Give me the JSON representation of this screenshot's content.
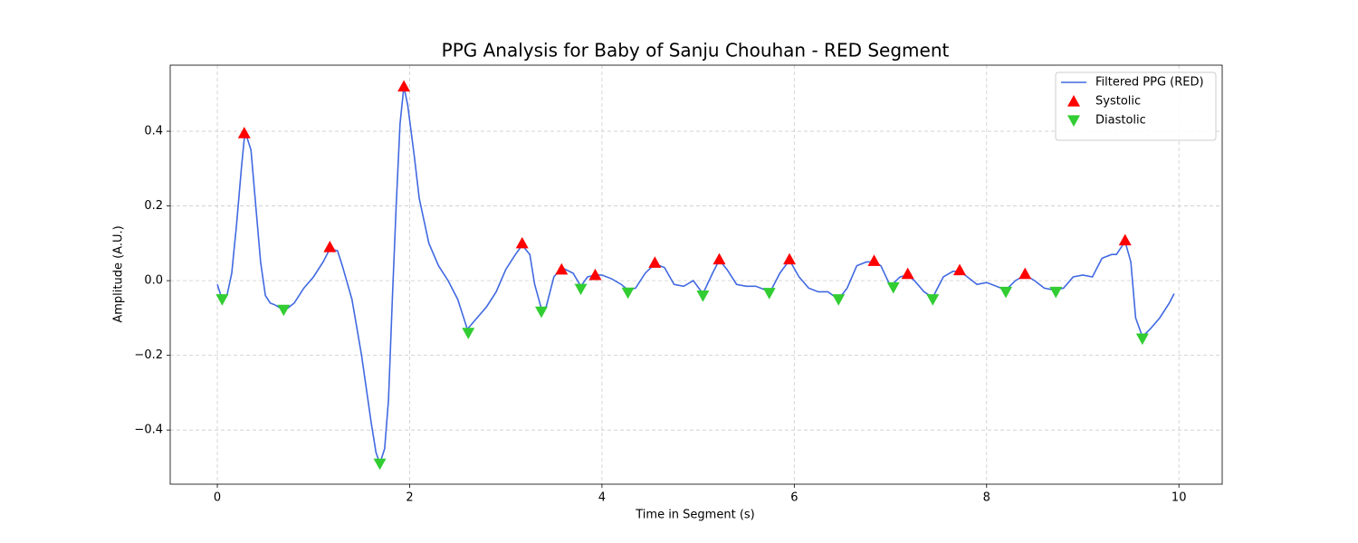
{
  "chart_data": {
    "type": "line",
    "title": "PPG Analysis for Baby of Sanju Chouhan - RED Segment",
    "x_label": "Time in Segment (s)",
    "y_label": "Amplitude (A.U.)",
    "xlim": [
      -0.49,
      10.45
    ],
    "ylim": [
      -0.545,
      0.577
    ],
    "xticks": [
      0,
      2,
      4,
      6,
      8,
      10
    ],
    "yticks": [
      {
        "value": -0.4,
        "label": "−0.4"
      },
      {
        "value": -0.2,
        "label": "−0.2"
      },
      {
        "value": 0,
        "label": "0.0"
      },
      0.2,
      0.4
    ],
    "grid": true,
    "legend": "upper right",
    "series": [
      {
        "name": "Filtered PPG (RED)",
        "color": "#4169e1",
        "marker": "line",
        "x": [
          0,
          0.05,
          0.1,
          0.15,
          0.2,
          0.25,
          0.28,
          0.3,
          0.35,
          0.4,
          0.45,
          0.5,
          0.55,
          0.6,
          0.7,
          0.8,
          0.9,
          1.0,
          1.1,
          1.17,
          1.25,
          1.3,
          1.4,
          1.5,
          1.6,
          1.65,
          1.69,
          1.74,
          1.78,
          1.82,
          1.86,
          1.9,
          1.94,
          1.98,
          2.05,
          2.1,
          2.2,
          2.3,
          2.4,
          2.5,
          2.6,
          2.7,
          2.8,
          2.9,
          3.0,
          3.1,
          3.17,
          3.25,
          3.3,
          3.37,
          3.42,
          3.5,
          3.58,
          3.7,
          3.78,
          3.85,
          3.93,
          4.0,
          4.1,
          4.2,
          4.27,
          4.35,
          4.45,
          4.55,
          4.65,
          4.75,
          4.85,
          4.95,
          5.05,
          5.15,
          5.22,
          5.3,
          5.4,
          5.5,
          5.6,
          5.75,
          5.85,
          5.95,
          6.05,
          6.15,
          6.25,
          6.35,
          6.46,
          6.55,
          6.65,
          6.75,
          6.83,
          6.9,
          7.0,
          7.1,
          7.18,
          7.25,
          7.35,
          7.44,
          7.55,
          7.65,
          7.72,
          7.8,
          7.9,
          8.0,
          8.1,
          8.2,
          8.3,
          8.4,
          8.5,
          8.6,
          8.7,
          8.8,
          8.9,
          9.0,
          9.1,
          9.2,
          9.3,
          9.35,
          9.44,
          9.5,
          9.55,
          9.62,
          9.7,
          9.8,
          9.9,
          9.95
        ],
        "values": [
          -0.01,
          -0.05,
          -0.04,
          0.02,
          0.15,
          0.3,
          0.38,
          0.39,
          0.35,
          0.2,
          0.05,
          -0.04,
          -0.06,
          -0.065,
          -0.08,
          -0.06,
          -0.02,
          0.01,
          0.05,
          0.085,
          0.08,
          0.04,
          -0.05,
          -0.2,
          -0.38,
          -0.46,
          -0.49,
          -0.45,
          -0.32,
          -0.05,
          0.2,
          0.42,
          0.52,
          0.47,
          0.33,
          0.22,
          0.1,
          0.04,
          0,
          -0.05,
          -0.13,
          -0.1,
          -0.07,
          -0.03,
          0.03,
          0.07,
          0.095,
          0.07,
          -0.01,
          -0.075,
          -0.07,
          0.01,
          0.035,
          0.02,
          -0.015,
          0.01,
          0.015,
          0.015,
          0.005,
          -0.01,
          -0.025,
          -0.02,
          0.02,
          0.045,
          0.035,
          -0.01,
          -0.015,
          0,
          -0.035,
          0.02,
          0.055,
          0.03,
          -0.01,
          -0.015,
          -0.015,
          -0.03,
          0.02,
          0.055,
          0.01,
          -0.02,
          -0.03,
          -0.03,
          -0.05,
          -0.02,
          0.04,
          0.05,
          0.05,
          0.04,
          -0.015,
          0.01,
          0.015,
          0,
          -0.03,
          -0.045,
          0.01,
          0.025,
          0.025,
          0.01,
          -0.01,
          -0.005,
          -0.015,
          -0.025,
          0,
          0.015,
          0,
          -0.02,
          -0.025,
          -0.02,
          0.01,
          0.015,
          0.01,
          0.06,
          0.07,
          0.07,
          0.105,
          0.05,
          -0.1,
          -0.15,
          -0.13,
          -0.1,
          -0.06,
          -0.035
        ]
      },
      {
        "name": "Systolic",
        "color": "#ff0000",
        "marker": "^",
        "x": [
          0.28,
          1.17,
          1.94,
          3.17,
          3.58,
          3.93,
          4.55,
          5.22,
          5.95,
          6.83,
          7.18,
          7.72,
          8.4,
          9.44
        ],
        "values": [
          0.395,
          0.09,
          0.52,
          0.1,
          0.03,
          0.015,
          0.048,
          0.057,
          0.057,
          0.053,
          0.018,
          0.028,
          0.018,
          0.108
        ]
      },
      {
        "name": "Diastolic",
        "color": "#32cd32",
        "marker": "v",
        "x": [
          0.05,
          0.69,
          1.69,
          2.61,
          3.37,
          3.78,
          4.27,
          5.05,
          5.74,
          6.46,
          7.03,
          7.44,
          8.2,
          8.72,
          9.62
        ],
        "values": [
          -0.05,
          -0.078,
          -0.49,
          -0.14,
          -0.083,
          -0.022,
          -0.032,
          -0.04,
          -0.033,
          -0.05,
          -0.018,
          -0.05,
          -0.03,
          -0.03,
          -0.155
        ]
      }
    ]
  }
}
